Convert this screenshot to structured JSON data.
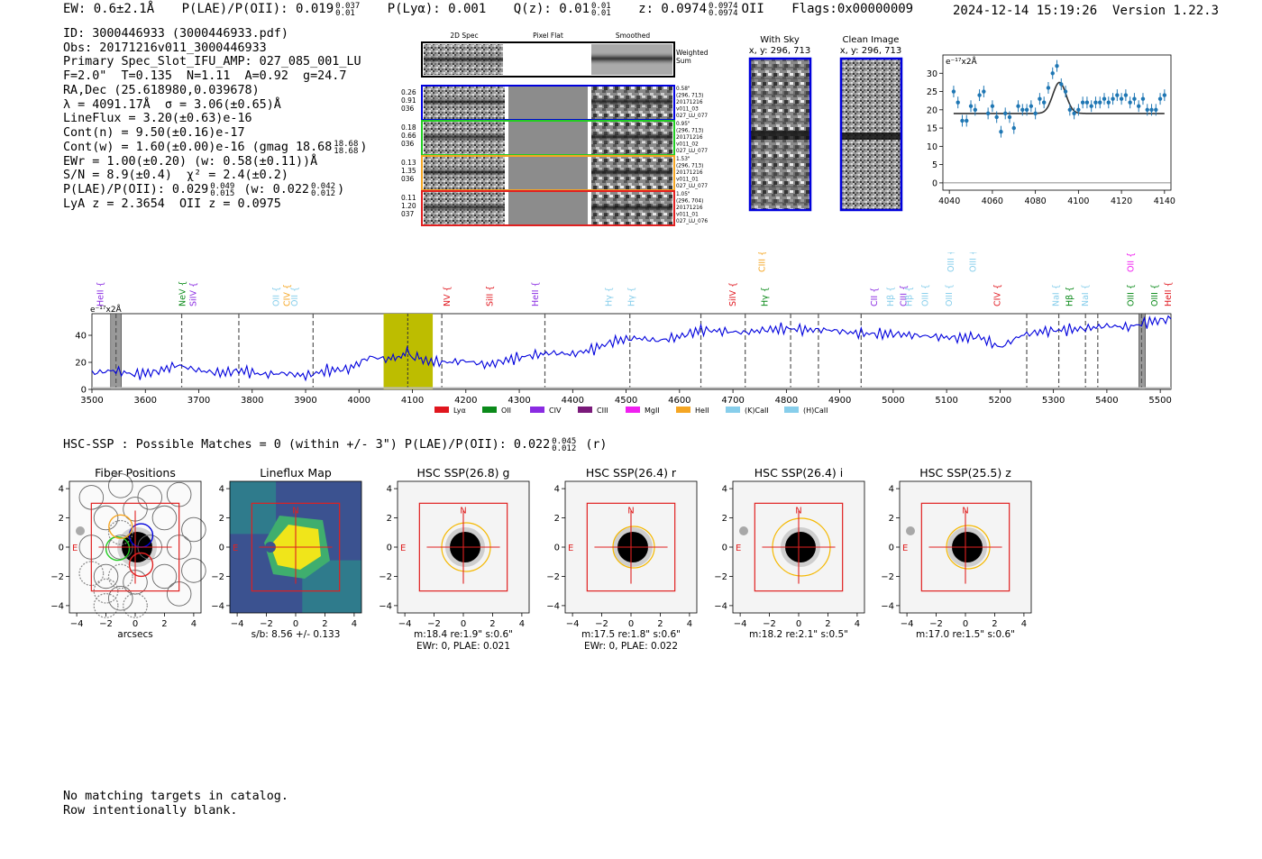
{
  "header": {
    "ew": "EW: 0.6±2.1Å",
    "plae_label": "P(LAE)/P(OII): 0.019",
    "plae_hi": "0.037",
    "plae_lo": "0.01",
    "plya": "P(Lyα): 0.001",
    "qz_label": "Q(z): 0.01",
    "qz_hi": "0.01",
    "qz_lo": "0.01",
    "z_label": "z: 0.0974",
    "z_hi": "0.0974",
    "z_lo": "0.0974",
    "z_line": "OII",
    "flags": "Flags:0x00000009",
    "datetime": "2024-12-14 15:19:26",
    "version": "Version 1.22.3"
  },
  "info": {
    "id": "ID: 3000446933 (3000446933.pdf)",
    "obs": "Obs: 20171216v011_3000446933",
    "primary": "Primary Spec_Slot_IFU_AMP: 027_085_001_LU",
    "fwhm": "F=2.0\"  T=0.135  N=1.11  A=0.92  g=24.7",
    "radec": "RA,Dec (25.618980,0.039678)",
    "wave": "λ = 4091.17Å  σ = 3.06(±0.65)Å",
    "lineflux": "LineFlux = 3.20(±0.63)e-16",
    "contn": "Cont(n) = 9.50(±0.16)e-17",
    "contw_label": "Cont(w) = 1.60(±0.00)e-16 (gmag 18.68",
    "contw_hi": "18.68",
    "contw_lo": "18.68",
    "ewr": "EWr = 1.00(±0.20) (w: 0.58(±0.11))Å",
    "sn": "S/N = 8.9(±0.4)  χ² = 2.4(±0.2)",
    "plae2_label": "P(LAE)/P(OII): 0.029",
    "plae2_hi": "0.049",
    "plae2_lo": "0.015",
    "plae2_w_label": "(w: 0.022",
    "plae2_w_hi": "0.042",
    "plae2_w_lo": "0.012",
    "lyaz": "LyA z = 2.3654  OII z = 0.0975"
  },
  "cutouts": {
    "col_headers": [
      "2D Spec",
      "Pixel Flat",
      "Smoothed"
    ],
    "weighted_label": [
      "Weighted",
      "Sum"
    ],
    "rows": [
      {
        "left": [
          "0.26",
          "0.91",
          "036"
        ],
        "right": [
          "0.58\"",
          "(296, 713)",
          "20171216",
          "v011_03",
          "027_LU_077"
        ],
        "color": "#0000dd"
      },
      {
        "left": [
          "0.18",
          "0.66",
          "036"
        ],
        "right": [
          "0.95\"",
          "(296, 713)",
          "20171216",
          "v011_02",
          "027_LU_077"
        ],
        "color": "#22cc22"
      },
      {
        "left": [
          "0.13",
          "1.35",
          "036"
        ],
        "right": [
          "1.53\"",
          "(296, 713)",
          "20171216",
          "v011_01",
          "027_LU_077"
        ],
        "color": "#f5a623"
      },
      {
        "left": [
          "0.11",
          "1.20",
          "037"
        ],
        "right": [
          "1.05\"",
          "(296, 704)",
          "20171216",
          "v011_01",
          "027_LU_076"
        ],
        "color": "#e02020"
      }
    ],
    "with_sky": {
      "title": "With Sky",
      "coords": "x, y: 296, 713"
    },
    "clean": {
      "title": "Clean Image",
      "coords": "x, y: 296, 713"
    }
  },
  "chart_data": [
    {
      "type": "scatter",
      "title": "",
      "unit_label": "e⁻¹⁷x2Å",
      "xlim": [
        4037,
        4143
      ],
      "ylim": [
        -2,
        35
      ],
      "xticks": [
        4040,
        4060,
        4080,
        4100,
        4120,
        4140
      ],
      "yticks": [
        0,
        5,
        10,
        15,
        20,
        25,
        30
      ],
      "x": [
        4042,
        4044,
        4046,
        4048,
        4050,
        4052,
        4054,
        4056,
        4058,
        4060,
        4062,
        4064,
        4066,
        4068,
        4070,
        4072,
        4074,
        4076,
        4078,
        4080,
        4082,
        4084,
        4086,
        4088,
        4090,
        4092,
        4094,
        4096,
        4098,
        4100,
        4102,
        4104,
        4106,
        4108,
        4110,
        4112,
        4114,
        4116,
        4118,
        4120,
        4122,
        4124,
        4126,
        4128,
        4130,
        4132,
        4134,
        4136,
        4138,
        4140
      ],
      "y": [
        25,
        22,
        17,
        17,
        21,
        20,
        24,
        25,
        19,
        21,
        18,
        14,
        19,
        18,
        15,
        21,
        20,
        20,
        21,
        19,
        23,
        22,
        26,
        30,
        32,
        27,
        25,
        20,
        19,
        20,
        22,
        22,
        21,
        22,
        22,
        23,
        22,
        23,
        24,
        23,
        24,
        22,
        23,
        21,
        23,
        20,
        20,
        20,
        23,
        24
      ],
      "err": [
        1.6,
        1.6,
        1.6,
        1.6,
        1.6,
        1.6,
        1.6,
        1.6,
        1.6,
        1.6,
        1.6,
        1.6,
        1.6,
        1.6,
        1.6,
        1.6,
        1.6,
        1.6,
        1.6,
        1.6,
        1.6,
        1.6,
        1.6,
        1.6,
        1.6,
        1.6,
        1.6,
        1.6,
        1.6,
        1.6,
        1.6,
        1.6,
        1.6,
        1.6,
        1.6,
        1.6,
        1.6,
        1.6,
        1.6,
        1.6,
        1.6,
        1.6,
        1.6,
        1.6,
        1.6,
        1.6,
        1.6,
        1.6,
        1.6,
        1.6
      ],
      "fit": {
        "continuum": 19,
        "amplitude": 8.5,
        "center": 4091.17,
        "sigma": 3.06,
        "x_start": 4042,
        "x_end": 4140
      }
    },
    {
      "type": "line",
      "unit_label": "e⁻¹⁷x2Å",
      "xlim": [
        3500,
        5520
      ],
      "ylim": [
        0,
        56
      ],
      "xticks": [
        3500,
        3600,
        3700,
        3800,
        3900,
        4000,
        4100,
        4200,
        4300,
        4400,
        4500,
        4600,
        4700,
        4800,
        4900,
        5000,
        5100,
        5200,
        5300,
        5400,
        5500
      ],
      "yticks": [
        0,
        20,
        40
      ],
      "x": [
        3500,
        3540,
        3580,
        3620,
        3660,
        3700,
        3740,
        3780,
        3820,
        3860,
        3900,
        3940,
        3980,
        4020,
        4060,
        4090,
        4120,
        4160,
        4200,
        4240,
        4280,
        4320,
        4360,
        4400,
        4440,
        4480,
        4520,
        4560,
        4600,
        4640,
        4680,
        4720,
        4760,
        4800,
        4840,
        4880,
        4920,
        4960,
        5000,
        5040,
        5080,
        5120,
        5160,
        5200,
        5240,
        5280,
        5320,
        5360,
        5400,
        5440,
        5480,
        5520
      ],
      "y": [
        12,
        14,
        11,
        13,
        18,
        14,
        12,
        14,
        11,
        12,
        10,
        14,
        15,
        24,
        22,
        27,
        21,
        20,
        21,
        18,
        22,
        25,
        27,
        26,
        30,
        36,
        38,
        36,
        39,
        44,
        43,
        42,
        44,
        45,
        44,
        44,
        42,
        41,
        41,
        40,
        39,
        38,
        39,
        31,
        40,
        43,
        44,
        45,
        47,
        46,
        50,
        52
      ],
      "highlight_band": [
        4046,
        4138
      ],
      "sky_bands": [
        [
          3535,
          3555
        ],
        [
          5460,
          5472
        ]
      ],
      "detect_line": 4091.17,
      "marker_lines": [
        3545,
        3668,
        3775,
        3914,
        4155,
        4348,
        4507,
        4640,
        4723,
        4808,
        4860,
        4940,
        5250,
        5310,
        5360,
        5383,
        5465
      ],
      "legend": [
        {
          "label": "Lyα",
          "color": "#e0161e"
        },
        {
          "label": "OII",
          "color": "#0b8a1a"
        },
        {
          "label": "CIV",
          "color": "#8a2be2"
        },
        {
          "label": "CIII",
          "color": "#7a1a7a"
        },
        {
          "label": "MgII",
          "color": "#f020f0"
        },
        {
          "label": "HeII",
          "color": "#f5a623"
        },
        {
          "label": "(K)CaII",
          "color": "#87ceeb"
        },
        {
          "label": "(H)CaII",
          "color": "#87ceeb"
        }
      ],
      "line_labels": [
        {
          "label": "HeII",
          "wave": 3516,
          "color": "#8a2be2",
          "tier": 0
        },
        {
          "label": "NeV",
          "wave": 3670,
          "color": "#0b8a1a",
          "tier": 0
        },
        {
          "label": "SiIV",
          "wave": 3690,
          "color": "#8a2be2",
          "tier": 0
        },
        {
          "label": "OII",
          "wave": 3845,
          "color": "#87ceeb",
          "tier": 0
        },
        {
          "label": "CIV",
          "wave": 3865,
          "color": "#f5a623",
          "tier": 0
        },
        {
          "label": "OII",
          "wave": 3880,
          "color": "#87ceeb",
          "tier": 0
        },
        {
          "label": "NV",
          "wave": 4165,
          "color": "#e0161e",
          "tier": 0
        },
        {
          "label": "SiII",
          "wave": 4245,
          "color": "#e0161e",
          "tier": 0
        },
        {
          "label": "HeII",
          "wave": 4330,
          "color": "#8a2be2",
          "tier": 0
        },
        {
          "label": "Hγ",
          "wave": 4468,
          "color": "#87ceeb",
          "tier": 0
        },
        {
          "label": "Hγ",
          "wave": 4510,
          "color": "#87ceeb",
          "tier": 0
        },
        {
          "label": "SiIV",
          "wave": 4700,
          "color": "#e0161e",
          "tier": 0
        },
        {
          "label": "CIII",
          "wave": 4755,
          "color": "#f5a623",
          "tier": 1
        },
        {
          "label": "Hγ",
          "wave": 4760,
          "color": "#0b8a1a",
          "tier": 0
        },
        {
          "label": "CII",
          "wave": 4965,
          "color": "#8a2be2",
          "tier": 0
        },
        {
          "label": "Hβ",
          "wave": 4995,
          "color": "#87ceeb",
          "tier": 0
        },
        {
          "label": "CIII",
          "wave": 5020,
          "color": "#8a2be2",
          "tier": 0
        },
        {
          "label": "Hβ",
          "wave": 5030,
          "color": "#87ceeb",
          "tier": 0
        },
        {
          "label": "OIII",
          "wave": 5060,
          "color": "#87ceeb",
          "tier": 0
        },
        {
          "label": "OIII",
          "wave": 5105,
          "color": "#87ceeb",
          "tier": 0
        },
        {
          "label": "OIII",
          "wave": 5108,
          "color": "#87ceeb",
          "tier": 1
        },
        {
          "label": "OIII",
          "wave": 5150,
          "color": "#87ceeb",
          "tier": 1
        },
        {
          "label": "CIV",
          "wave": 5195,
          "color": "#e0161e",
          "tier": 0
        },
        {
          "label": "NaI",
          "wave": 5305,
          "color": "#87ceeb",
          "tier": 0
        },
        {
          "label": "Hβ",
          "wave": 5330,
          "color": "#0b8a1a",
          "tier": 0
        },
        {
          "label": "NaI",
          "wave": 5360,
          "color": "#87ceeb",
          "tier": 0
        },
        {
          "label": "OIII",
          "wave": 5445,
          "color": "#0b8a1a",
          "tier": 0
        },
        {
          "label": "OII",
          "wave": 5445,
          "color": "#f020f0",
          "tier": 1
        },
        {
          "label": "OIII",
          "wave": 5490,
          "color": "#0b8a1a",
          "tier": 0
        },
        {
          "label": "HeII",
          "wave": 5515,
          "color": "#e0161e",
          "tier": 0
        }
      ]
    }
  ],
  "hsc": {
    "line_label": "HSC-SSP : Possible Matches = 0 (within +/- 3\")  P(LAE)/P(OII): 0.022",
    "line_hi": "0.045",
    "line_lo": "0.012",
    "line_band": "(r)",
    "ticks_x": [
      "−4",
      "−2",
      "0",
      "2",
      "4"
    ],
    "ticks_y": [
      "4",
      "2",
      "0",
      "−2",
      "−4"
    ],
    "panels": [
      {
        "title": "Fiber Positions",
        "sub1": "arcsecs",
        "sub2": "",
        "north": "",
        "east": "E",
        "kind": "fiber"
      },
      {
        "title": "Lineflux Map",
        "sub1": "s/b: 8.56 +/- 0.133",
        "sub2": "",
        "north": "N",
        "east": "E",
        "kind": "flux"
      },
      {
        "title": "HSC SSP(26.8) g",
        "sub1": "m:18.4  re:1.9\"  s:0.6\"",
        "sub2": "EWr: 0, PLAE: 0.021",
        "north": "N",
        "east": "E",
        "kind": "img"
      },
      {
        "title": "HSC SSP(26.4) r",
        "sub1": "m:17.5  re:1.8\"  s:0.6\"",
        "sub2": "EWr: 0, PLAE: 0.022",
        "north": "N",
        "east": "E",
        "kind": "img"
      },
      {
        "title": "HSC SSP(26.4) i",
        "sub1": "m:18.2  re:2.1\"  s:0.5\"",
        "sub2": "",
        "north": "N",
        "east": "E",
        "kind": "img"
      },
      {
        "title": "HSC SSP(25.5) z",
        "sub1": "m:17.0  re:1.5\"  s:0.6\"",
        "sub2": "",
        "north": "N",
        "east": "E",
        "kind": "img"
      }
    ]
  },
  "footer": {
    "line1": "No matching targets in catalog.",
    "line2": "Row intentionally blank."
  },
  "colors": {
    "blue": "#0000dd",
    "green": "#22cc22",
    "orange": "#f5a623",
    "red": "#e02020",
    "fit_gray": "#333333",
    "point_blue": "#1f77b4",
    "band_olive": "#bdbd00"
  }
}
